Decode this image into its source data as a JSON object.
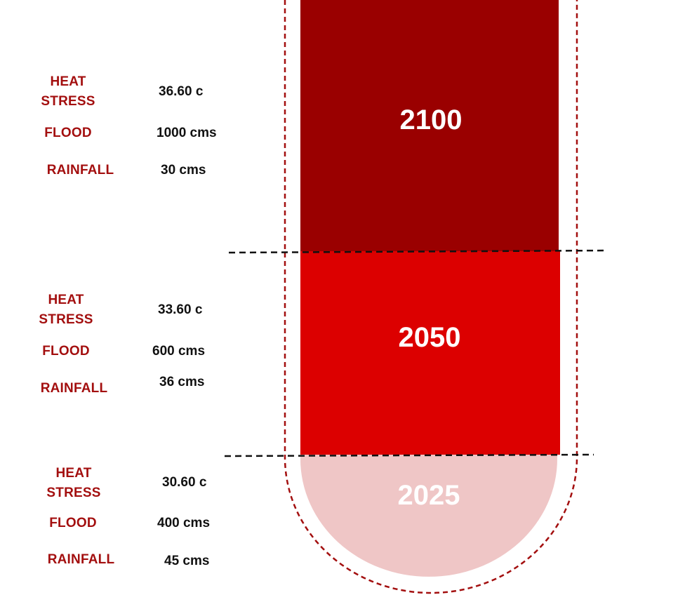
{
  "colors": {
    "band_2100": "#9a0000",
    "band_2050": "#dc0000",
    "band_2025": "#efc6c6",
    "outline": "#a30f0f",
    "label": "#a30f0f",
    "value": "#111111",
    "divider": "#111111"
  },
  "stages": [
    {
      "year": "2100",
      "heat_stress_label": "HEAT\nSTRESS",
      "heat_stress_value": "36.60 c",
      "flood_label": "FLOOD",
      "flood_value": "1000 cms",
      "rainfall_label": "RAINFALL",
      "rainfall_value": "30 cms"
    },
    {
      "year": "2050",
      "heat_stress_label": "HEAT\nSTRESS",
      "heat_stress_value": "33.60 c",
      "flood_label": "FLOOD",
      "flood_value": "600 cms",
      "rainfall_label": "RAINFALL",
      "rainfall_value": "36 cms"
    },
    {
      "year": "2025",
      "heat_stress_label": "HEAT\nSTRESS",
      "heat_stress_value": "30.60 c",
      "flood_label": "FLOOD",
      "flood_value": "400 cms",
      "rainfall_label": "RAINFALL",
      "rainfall_value": "45 cms"
    }
  ]
}
